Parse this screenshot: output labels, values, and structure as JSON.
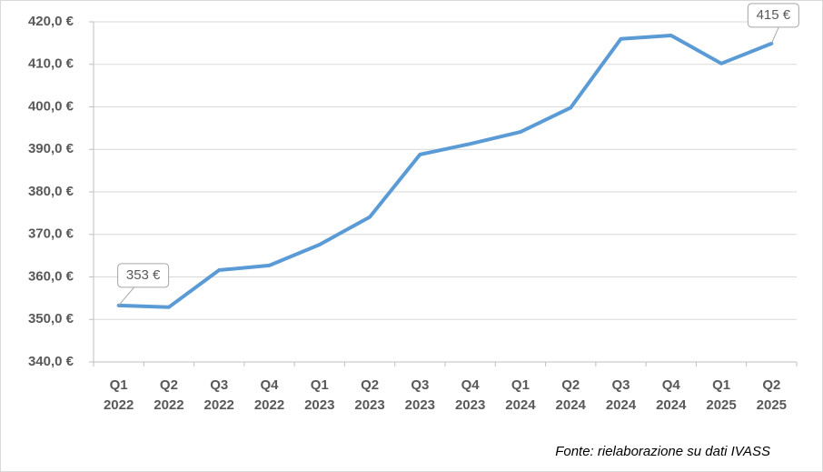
{
  "chart_data": {
    "type": "line",
    "categories": [
      [
        "Q1",
        "2022"
      ],
      [
        "Q2",
        "2022"
      ],
      [
        "Q3",
        "2022"
      ],
      [
        "Q4",
        "2022"
      ],
      [
        "Q1",
        "2023"
      ],
      [
        "Q2",
        "2023"
      ],
      [
        "Q3",
        "2023"
      ],
      [
        "Q4",
        "2023"
      ],
      [
        "Q1",
        "2024"
      ],
      [
        "Q2",
        "2024"
      ],
      [
        "Q3",
        "2024"
      ],
      [
        "Q4",
        "2024"
      ],
      [
        "Q1",
        "2025"
      ],
      [
        "Q2",
        "2025"
      ]
    ],
    "series": [
      {
        "color": "#5b9bd5",
        "values": [
          353.3,
          352.9,
          361.6,
          362.7,
          367.6,
          374.1,
          388.8,
          391.3,
          394.1,
          399.8,
          416.0,
          416.8,
          410.2,
          414.9
        ],
        "value_labels": [
          "353 €",
          null,
          null,
          null,
          null,
          null,
          null,
          null,
          null,
          null,
          null,
          null,
          null,
          "415 €"
        ]
      }
    ],
    "ylim": [
      340,
      420
    ],
    "yticks": [
      {
        "value": 340,
        "label": "340,0 €"
      },
      {
        "value": 350,
        "label": "350,0 €"
      },
      {
        "value": 360,
        "label": "360,0 €"
      },
      {
        "value": 370,
        "label": "370,0 €"
      },
      {
        "value": 380,
        "label": "380,0 €"
      },
      {
        "value": 390,
        "label": "390,0 €"
      },
      {
        "value": 400,
        "label": "400,0 €"
      },
      {
        "value": 410,
        "label": "410,0 €"
      },
      {
        "value": 420,
        "label": "420,0 €"
      }
    ],
    "grid": true,
    "annotation": "Fonte: rielaborazione su dati IVASS"
  }
}
